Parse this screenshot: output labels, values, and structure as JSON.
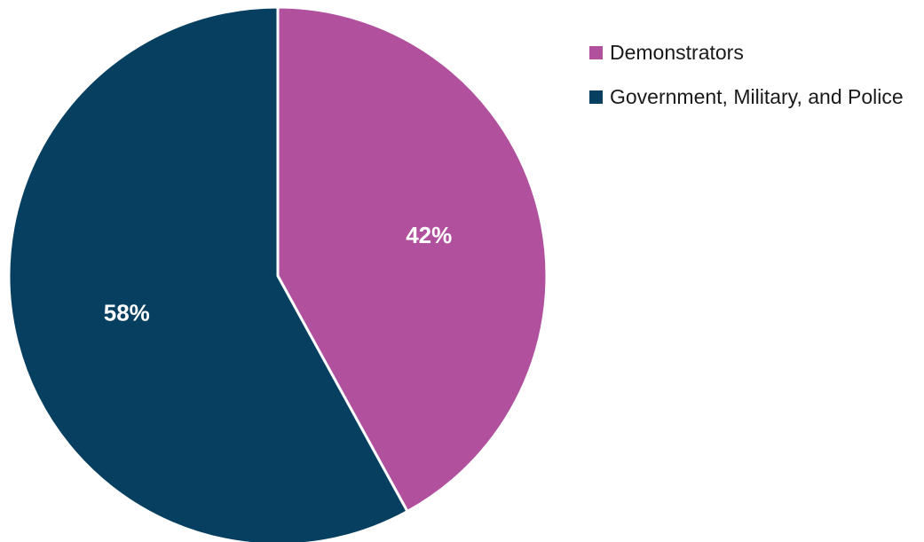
{
  "chart_data": {
    "type": "pie",
    "title": "",
    "slices": [
      {
        "name": "Demonstrators",
        "value": 42,
        "label": "42%",
        "color": "#b1519e"
      },
      {
        "name": "Government, Military, and Police",
        "value": 58,
        "label": "58%",
        "color": "#073f60"
      }
    ],
    "start": "12 o'clock",
    "direction": "clockwise",
    "legend_position": "top-right"
  },
  "legend": {
    "items": [
      {
        "label": "Demonstrators",
        "color": "#b1519e"
      },
      {
        "label": "Government, Military, and Police",
        "color": "#073f60"
      }
    ]
  }
}
